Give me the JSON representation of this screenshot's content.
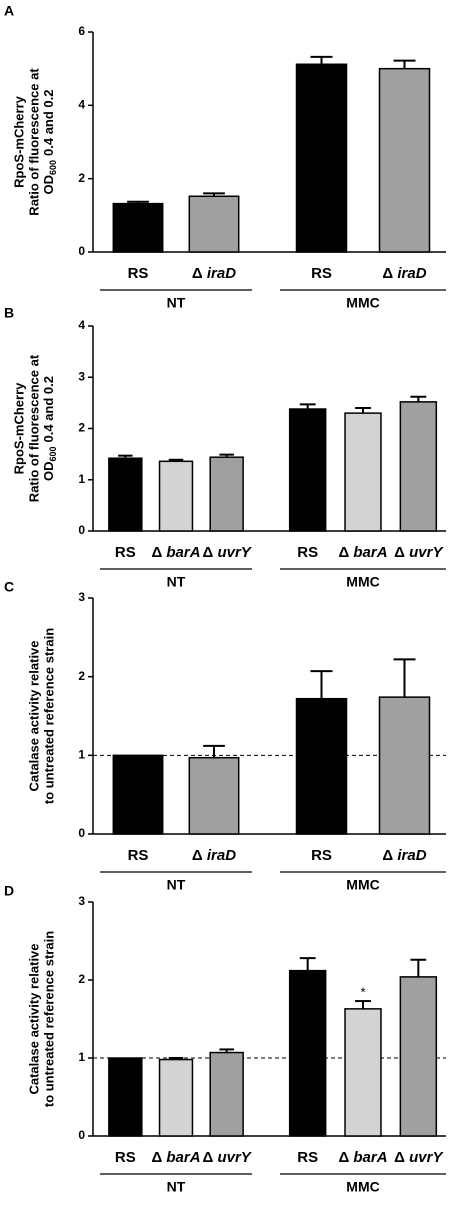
{
  "chart_data": [
    {
      "type": "bar",
      "panel": "A",
      "ylabel": [
        "RpoS-mCherry",
        "Ratio of fluorescence at"
      ],
      "ylabel_sub": {
        "text": "OD",
        "sub": "600",
        "after": "0.4 and 0.2"
      },
      "ylim": [
        0,
        6
      ],
      "yticks": [
        0,
        2,
        4,
        6
      ],
      "groups": [
        {
          "name": "NT",
          "categories": [
            "RS",
            "Δ iraD"
          ],
          "values": [
            1.32,
            1.52
          ],
          "errors": [
            0.05,
            0.08
          ],
          "colors": [
            "#000000",
            "#a0a0a0"
          ]
        },
        {
          "name": "MMC",
          "categories": [
            "RS",
            "Δ iraD"
          ],
          "values": [
            5.12,
            5.0
          ],
          "errors": [
            0.2,
            0.22
          ],
          "colors": [
            "#000000",
            "#a0a0a0"
          ]
        }
      ]
    },
    {
      "type": "bar",
      "panel": "B",
      "ylabel": [
        "RpoS-mCherry",
        "Ratio of fluorescence at"
      ],
      "ylabel_sub": {
        "text": "OD",
        "sub": "600",
        "after": "0.4 and 0.2"
      },
      "ylim": [
        0,
        4
      ],
      "yticks": [
        0,
        1,
        2,
        3,
        4
      ],
      "groups": [
        {
          "name": "NT",
          "categories": [
            "RS",
            "Δ barA",
            "Δ uvrY"
          ],
          "values": [
            1.42,
            1.36,
            1.44
          ],
          "errors": [
            0.05,
            0.03,
            0.05
          ],
          "colors": [
            "#000000",
            "#d3d3d3",
            "#a0a0a0"
          ]
        },
        {
          "name": "MMC",
          "categories": [
            "RS",
            "Δ barA",
            "Δ uvrY"
          ],
          "values": [
            2.38,
            2.3,
            2.52
          ],
          "errors": [
            0.09,
            0.1,
            0.1
          ],
          "colors": [
            "#000000",
            "#d3d3d3",
            "#a0a0a0"
          ]
        }
      ]
    },
    {
      "type": "bar",
      "panel": "C",
      "ylabel": [
        "Catalase activity relative",
        "to untreated reference strain"
      ],
      "ylim": [
        0,
        3
      ],
      "yticks": [
        0,
        1,
        2,
        3
      ],
      "reference_line": 1,
      "groups": [
        {
          "name": "NT",
          "categories": [
            "RS",
            "Δ iraD"
          ],
          "values": [
            1.0,
            0.97
          ],
          "errors": [
            0,
            0.15
          ],
          "colors": [
            "#000000",
            "#a0a0a0"
          ]
        },
        {
          "name": "MMC",
          "categories": [
            "RS",
            "Δ iraD"
          ],
          "values": [
            1.72,
            1.74
          ],
          "errors": [
            0.35,
            0.48
          ],
          "colors": [
            "#000000",
            "#a0a0a0"
          ]
        }
      ]
    },
    {
      "type": "bar",
      "panel": "D",
      "ylabel": [
        "Catalase activity relative",
        "to untreated reference strain"
      ],
      "ylim": [
        0,
        3
      ],
      "yticks": [
        0,
        1,
        2,
        3
      ],
      "reference_line": 1,
      "groups": [
        {
          "name": "NT",
          "categories": [
            "RS",
            "Δ barA",
            "Δ uvrY"
          ],
          "values": [
            1.0,
            0.98,
            1.07
          ],
          "errors": [
            0,
            0.02,
            0.04
          ],
          "colors": [
            "#000000",
            "#d3d3d3",
            "#a0a0a0"
          ]
        },
        {
          "name": "MMC",
          "categories": [
            "RS",
            "Δ barA",
            "Δ uvrY"
          ],
          "values": [
            2.12,
            1.63,
            2.04
          ],
          "errors": [
            0.16,
            0.1,
            0.22
          ],
          "colors": [
            "#000000",
            "#d3d3d3",
            "#a0a0a0"
          ],
          "value_annotations": [
            null,
            "*",
            null
          ]
        }
      ]
    }
  ]
}
